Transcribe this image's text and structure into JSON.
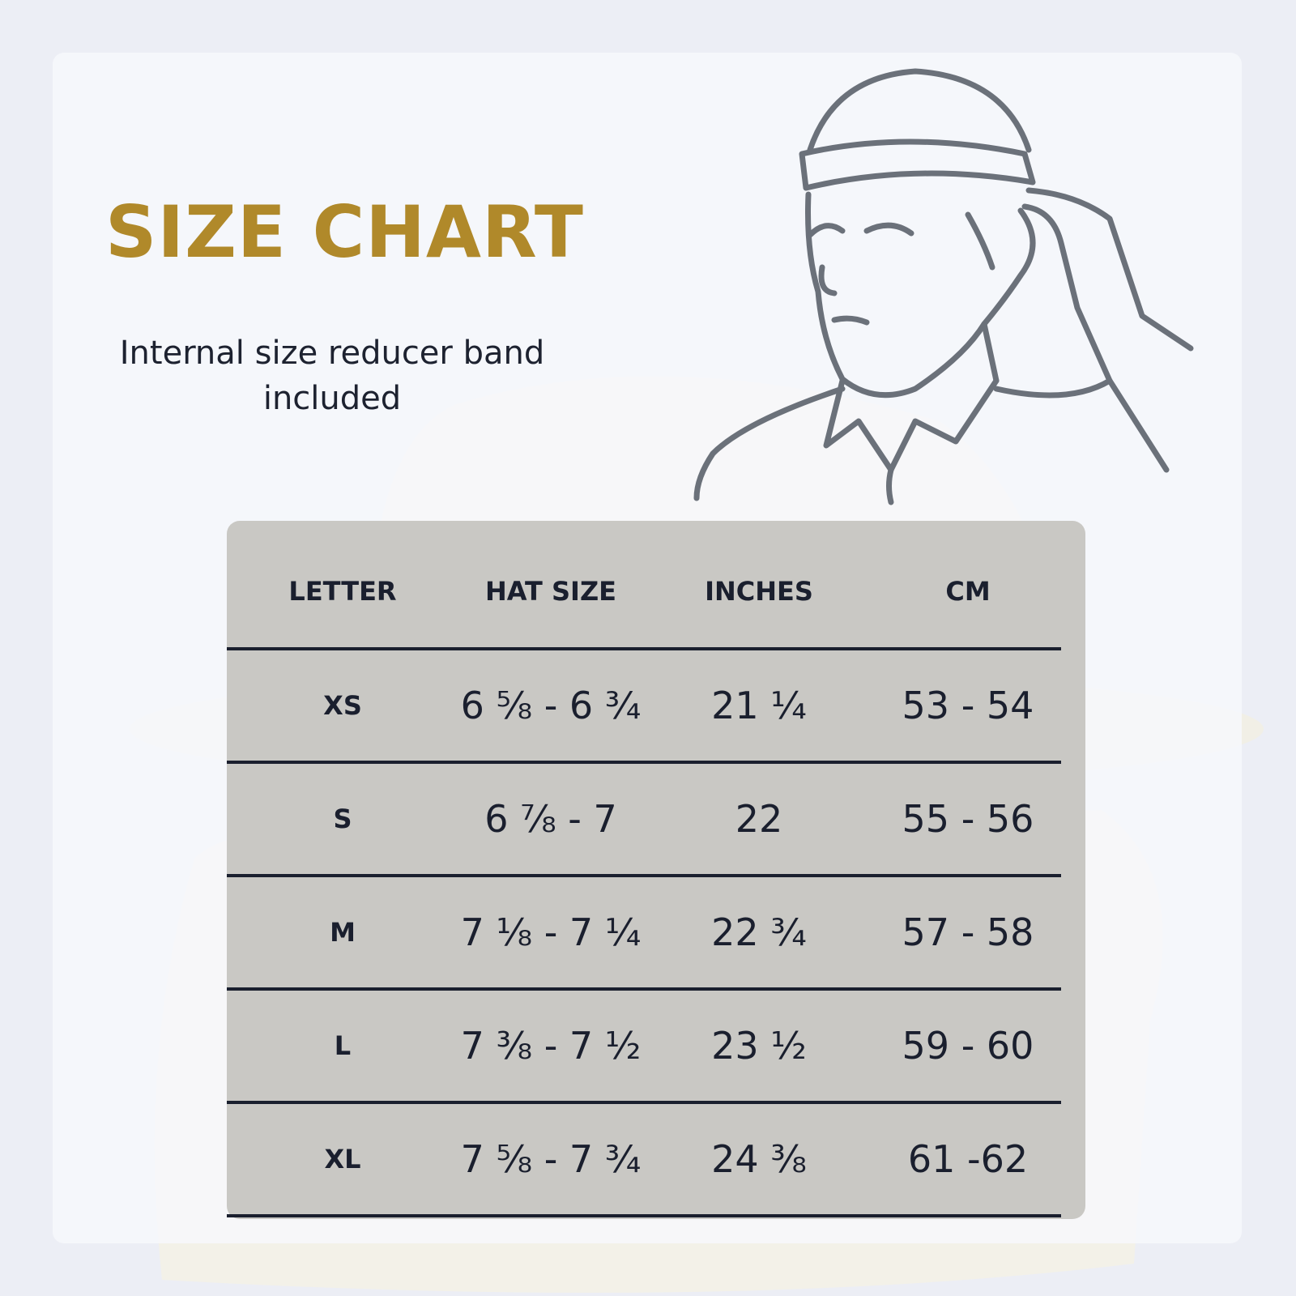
{
  "header": {
    "title": "SIZE CHART",
    "subtitle": "Internal size reducer band included"
  },
  "table": {
    "columns": [
      "LETTER",
      "HAT SIZE",
      "INCHES",
      "CM"
    ],
    "rows": [
      [
        "XS",
        "6 ⅝ - 6 ¾",
        "21 ¼",
        "53 - 54"
      ],
      [
        "S",
        "6 ⅞ - 7",
        "22",
        "55 - 56"
      ],
      [
        "M",
        "7 ⅛ - 7 ¼",
        "22 ¾",
        "57 - 58"
      ],
      [
        "L",
        "7 ⅜ - 7 ½",
        "23 ½",
        "59 - 60"
      ],
      [
        "XL",
        "7 ⅝ - 7 ¾",
        "24 ⅜",
        "61 -62"
      ]
    ]
  }
}
